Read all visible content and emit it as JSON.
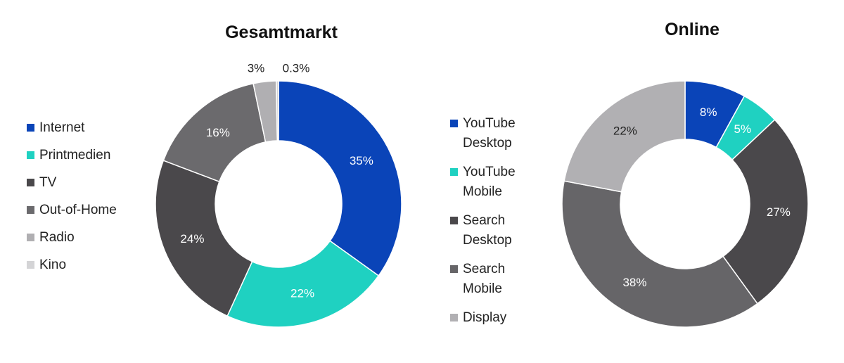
{
  "chart_data": [
    {
      "type": "pie",
      "title": "Gesamtmarkt",
      "categories": [
        "Internet",
        "Printmedien",
        "TV",
        "Out-of-Home",
        "Radio",
        "Kino"
      ],
      "values": [
        35,
        22,
        24,
        16,
        3,
        0.3
      ],
      "labels": [
        "35%",
        "22%",
        "24%",
        "16%",
        "3%",
        "0.3%"
      ],
      "colors": [
        "#0a44b8",
        "#1fd1c1",
        "#4a484b",
        "#6b6a6d",
        "#b0afb2",
        "#d4d4d6"
      ],
      "label_colors": [
        "#fff",
        "#fff",
        "#fff",
        "#fff",
        "#222",
        "#222"
      ],
      "legend": "left",
      "legend_lines": [
        [
          "Internet"
        ],
        [
          "Printmedien"
        ],
        [
          "TV"
        ],
        [
          "Out-of-Home"
        ],
        [
          "Radio"
        ],
        [
          "Kino"
        ]
      ]
    },
    {
      "type": "pie",
      "title": "Online",
      "categories": [
        "YouTube Desktop",
        "YouTube Mobile",
        "Search Desktop",
        "Search Mobile",
        "Display"
      ],
      "values": [
        8,
        5,
        27,
        38,
        22
      ],
      "labels": [
        "8%",
        "5%",
        "27%",
        "38%",
        "22%"
      ],
      "colors": [
        "#0a44b8",
        "#1fd1c1",
        "#4a484b",
        "#666568",
        "#b1b0b3"
      ],
      "label_colors": [
        "#fff",
        "#fff",
        "#fff",
        "#fff",
        "#222"
      ],
      "legend": "left",
      "legend_lines": [
        [
          "YouTube",
          "Desktop"
        ],
        [
          "YouTube",
          "Mobile"
        ],
        [
          "Search",
          "Desktop"
        ],
        [
          "Search",
          "Mobile"
        ],
        [
          "Display"
        ]
      ]
    }
  ]
}
